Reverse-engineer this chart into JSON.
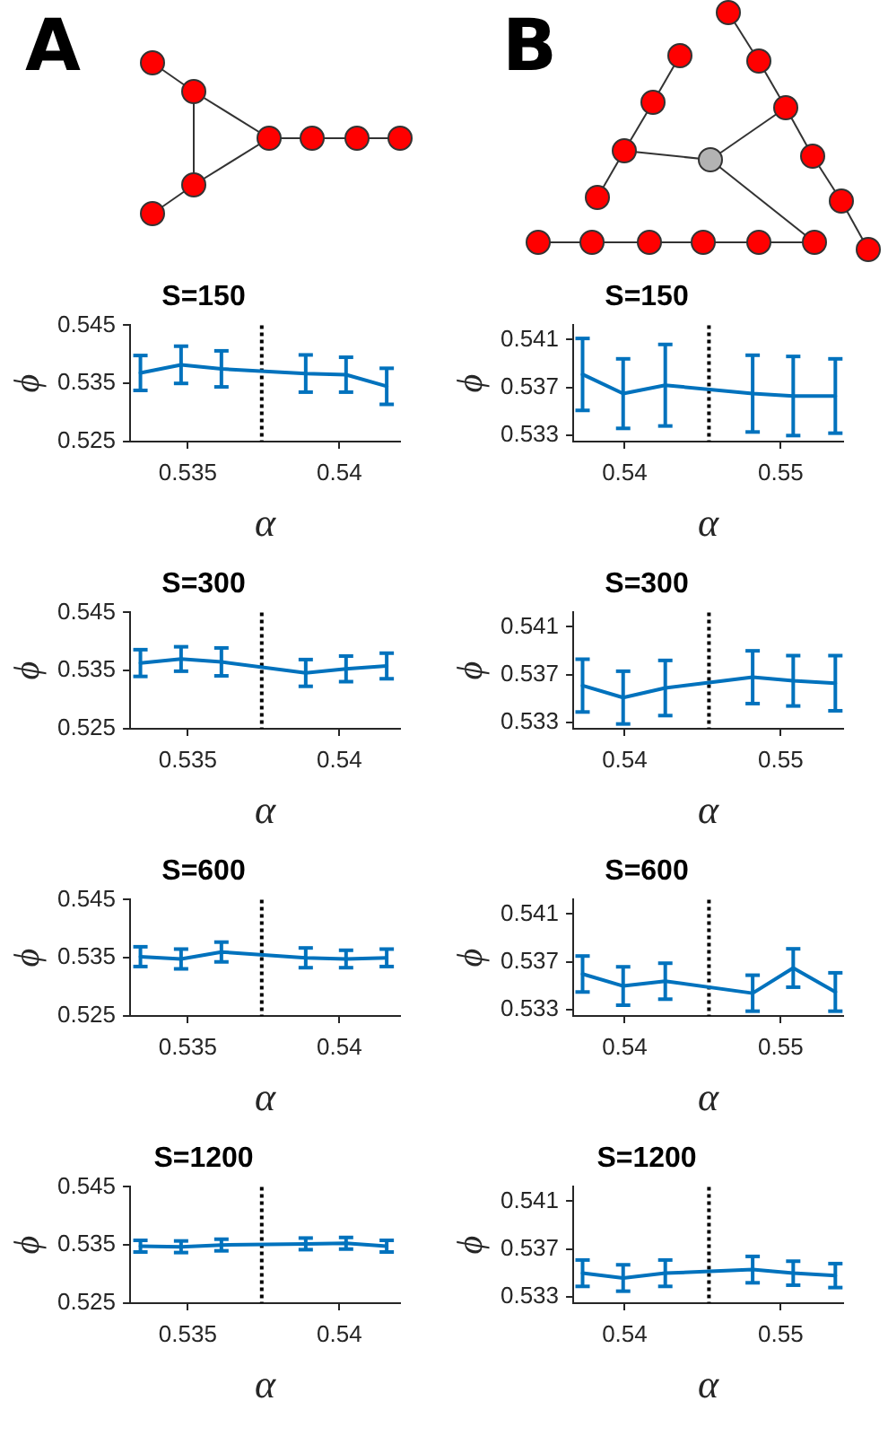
{
  "chart_data": [
    {
      "type": "line",
      "title": "S=150",
      "xlabel": "α",
      "ylabel": "ϕ",
      "annotations": [
        "A"
      ],
      "x": [
        0.53344,
        0.53478,
        0.53611,
        0.53889,
        0.54022,
        0.54156
      ],
      "xlim": [
        0.5331,
        0.542
      ],
      "xticks": [
        0.535,
        0.54
      ],
      "ylim": [
        0.525,
        0.545
      ],
      "yticks": [
        0.525,
        0.535,
        0.545
      ],
      "series": [
        {
          "color": "#0072bd",
          "values": [
            0.5368,
            0.5382,
            0.5375,
            0.5367,
            0.5365,
            0.5345
          ],
          "errors": [
            0.003,
            0.0032,
            0.0031,
            0.0032,
            0.003,
            0.0031
          ]
        }
      ],
      "ref_lines": [
        {
          "axis": "x",
          "value": 0.53744,
          "color": "#000000",
          "line_style": "dotted"
        }
      ],
      "grid": false,
      "legend": false,
      "marker": "none",
      "line_style": "solid"
    },
    {
      "type": "line",
      "title": "S=150",
      "xlabel": "α",
      "ylabel": "ϕ",
      "annotations": [
        "B"
      ],
      "x": [
        0.5373,
        0.5399,
        0.5426,
        0.5482,
        0.5508,
        0.5535
      ],
      "xlim": [
        0.5367,
        0.554
      ],
      "xticks": [
        0.54,
        0.55
      ],
      "ylim": [
        0.5325,
        0.5422
      ],
      "yticks": [
        0.533,
        0.537,
        0.541
      ],
      "series": [
        {
          "color": "#0072bd",
          "values": [
            0.5381,
            0.5365,
            0.5372,
            0.5365,
            0.5363,
            0.5363
          ],
          "errors": [
            0.003,
            0.0029,
            0.0034,
            0.0032,
            0.0033,
            0.0031
          ]
        }
      ],
      "ref_lines": [
        {
          "axis": "x",
          "value": 0.5454,
          "color": "#000000",
          "line_style": "dotted"
        }
      ],
      "grid": false,
      "legend": false,
      "marker": "none",
      "line_style": "solid"
    },
    {
      "type": "line",
      "title": "S=300",
      "xlabel": "α",
      "ylabel": "ϕ",
      "x": [
        0.53344,
        0.53478,
        0.53611,
        0.53889,
        0.54022,
        0.54156
      ],
      "xlim": [
        0.5331,
        0.542
      ],
      "xticks": [
        0.535,
        0.54
      ],
      "ylim": [
        0.525,
        0.545
      ],
      "yticks": [
        0.525,
        0.535,
        0.545
      ],
      "series": [
        {
          "color": "#0072bd",
          "values": [
            0.5363,
            0.537,
            0.5365,
            0.5346,
            0.5353,
            0.5358
          ],
          "errors": [
            0.0023,
            0.0021,
            0.0024,
            0.0023,
            0.0022,
            0.0022
          ]
        }
      ],
      "ref_lines": [
        {
          "axis": "x",
          "value": 0.53744,
          "color": "#000000",
          "line_style": "dotted"
        }
      ],
      "grid": false,
      "legend": false,
      "marker": "none",
      "line_style": "solid"
    },
    {
      "type": "line",
      "title": "S=300",
      "xlabel": "α",
      "ylabel": "ϕ",
      "x": [
        0.5373,
        0.5399,
        0.5426,
        0.5482,
        0.5508,
        0.5535
      ],
      "xlim": [
        0.5367,
        0.554
      ],
      "xticks": [
        0.54,
        0.55
      ],
      "ylim": [
        0.5325,
        0.5422
      ],
      "yticks": [
        0.533,
        0.537,
        0.541
      ],
      "series": [
        {
          "color": "#0072bd",
          "values": [
            0.5361,
            0.5351,
            0.5359,
            0.5368,
            0.5365,
            0.5363
          ],
          "errors": [
            0.0022,
            0.0022,
            0.0023,
            0.0022,
            0.0021,
            0.0023
          ]
        }
      ],
      "ref_lines": [
        {
          "axis": "x",
          "value": 0.5454,
          "color": "#000000",
          "line_style": "dotted"
        }
      ],
      "grid": false,
      "legend": false,
      "marker": "none",
      "line_style": "solid"
    },
    {
      "type": "line",
      "title": "S=600",
      "xlabel": "α",
      "ylabel": "ϕ",
      "x": [
        0.53344,
        0.53478,
        0.53611,
        0.53889,
        0.54022,
        0.54156
      ],
      "xlim": [
        0.5331,
        0.542
      ],
      "xticks": [
        0.535,
        0.54
      ],
      "ylim": [
        0.525,
        0.545
      ],
      "yticks": [
        0.525,
        0.535,
        0.545
      ],
      "series": [
        {
          "color": "#0072bd",
          "values": [
            0.5352,
            0.5348,
            0.536,
            0.535,
            0.5348,
            0.535
          ],
          "errors": [
            0.0017,
            0.0017,
            0.0017,
            0.0017,
            0.0015,
            0.0015
          ]
        }
      ],
      "ref_lines": [
        {
          "axis": "x",
          "value": 0.53744,
          "color": "#000000",
          "line_style": "dotted"
        }
      ],
      "grid": false,
      "legend": false,
      "marker": "none",
      "line_style": "solid"
    },
    {
      "type": "line",
      "title": "S=600",
      "xlabel": "α",
      "ylabel": "ϕ",
      "x": [
        0.5373,
        0.5399,
        0.5426,
        0.5482,
        0.5508,
        0.5535
      ],
      "xlim": [
        0.5367,
        0.554
      ],
      "xticks": [
        0.54,
        0.55
      ],
      "ylim": [
        0.5325,
        0.5422
      ],
      "yticks": [
        0.533,
        0.537,
        0.541
      ],
      "series": [
        {
          "color": "#0072bd",
          "values": [
            0.536,
            0.535,
            0.5354,
            0.5344,
            0.5365,
            0.5345
          ],
          "errors": [
            0.0015,
            0.0016,
            0.0015,
            0.0015,
            0.0016,
            0.0016
          ]
        }
      ],
      "ref_lines": [
        {
          "axis": "x",
          "value": 0.5454,
          "color": "#000000",
          "line_style": "dotted"
        }
      ],
      "grid": false,
      "legend": false,
      "marker": "none",
      "line_style": "solid"
    },
    {
      "type": "line",
      "title": "S=1200",
      "xlabel": "α",
      "ylabel": "ϕ",
      "x": [
        0.53344,
        0.53478,
        0.53611,
        0.53889,
        0.54022,
        0.54156
      ],
      "xlim": [
        0.5331,
        0.542
      ],
      "xticks": [
        0.535,
        0.54
      ],
      "ylim": [
        0.525,
        0.545
      ],
      "yticks": [
        0.525,
        0.535,
        0.545
      ],
      "series": [
        {
          "color": "#0072bd",
          "values": [
            0.5348,
            0.5347,
            0.535,
            0.5352,
            0.5353,
            0.5348
          ],
          "errors": [
            0.001,
            0.001,
            0.001,
            0.001,
            0.001,
            0.001
          ]
        }
      ],
      "ref_lines": [
        {
          "axis": "x",
          "value": 0.53744,
          "color": "#000000",
          "line_style": "dotted"
        }
      ],
      "grid": false,
      "legend": false,
      "marker": "none",
      "line_style": "solid"
    },
    {
      "type": "line",
      "title": "S=1200",
      "xlabel": "α",
      "ylabel": "ϕ",
      "x": [
        0.5373,
        0.5399,
        0.5426,
        0.5482,
        0.5508,
        0.5535
      ],
      "xlim": [
        0.5367,
        0.554
      ],
      "xticks": [
        0.54,
        0.55
      ],
      "ylim": [
        0.5325,
        0.5422
      ],
      "yticks": [
        0.533,
        0.537,
        0.541
      ],
      "series": [
        {
          "color": "#0072bd",
          "values": [
            0.535,
            0.5346,
            0.535,
            0.5353,
            0.535,
            0.5348
          ],
          "errors": [
            0.0011,
            0.0011,
            0.0011,
            0.0011,
            0.001,
            0.001
          ]
        }
      ],
      "ref_lines": [
        {
          "axis": "x",
          "value": 0.5454,
          "color": "#000000",
          "line_style": "dotted"
        }
      ],
      "grid": false,
      "legend": false,
      "marker": "none",
      "line_style": "solid"
    }
  ]
}
